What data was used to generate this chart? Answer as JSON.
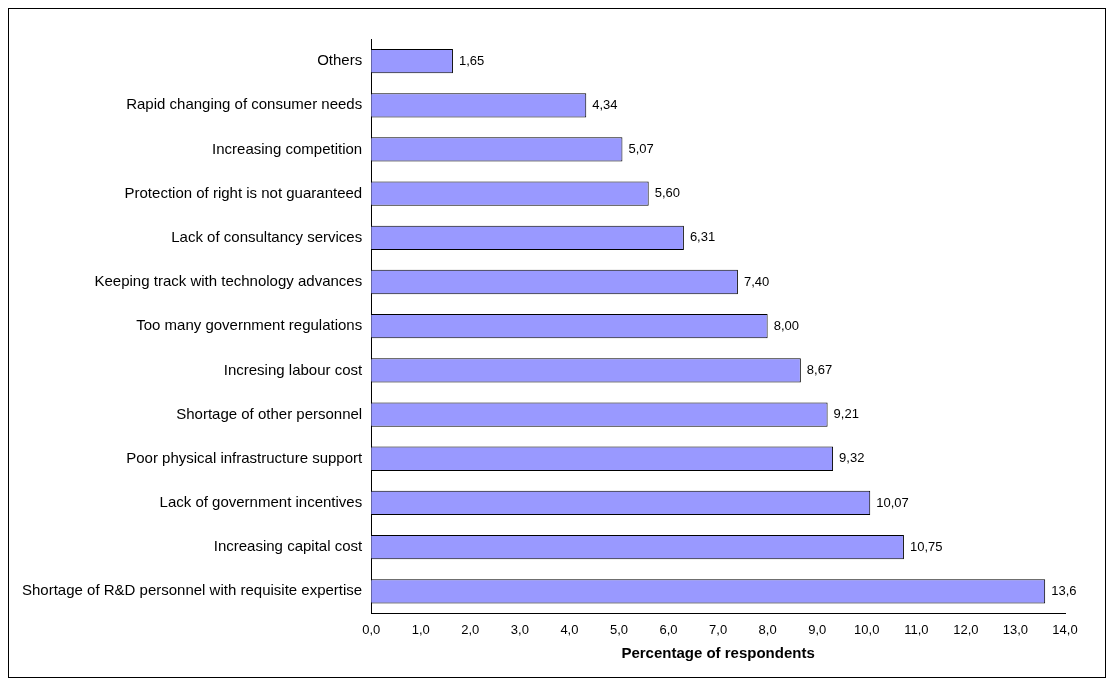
{
  "chart_data": {
    "type": "bar",
    "orientation": "horizontal",
    "xlabel": "Percentage of respondents",
    "categories": [
      "Others",
      "Rapid changing of consumer needs",
      "Increasing competition",
      "Protection of right is not guaranteed",
      "Lack of consultancy services",
      "Keeping track with technology advances",
      "Too many government regulations",
      "Incresing labour cost",
      "Shortage of other personnel",
      "Poor physical infrastructure support",
      "Lack of government incentives",
      "Increasing capital cost",
      "Shortage of R&D personnel with requisite expertise"
    ],
    "values": [
      1.65,
      4.34,
      5.07,
      5.6,
      6.31,
      7.4,
      8.0,
      8.67,
      9.21,
      9.32,
      10.07,
      10.75,
      13.6
    ],
    "value_labels": [
      "1,65",
      "4,34",
      "5,07",
      "5,60",
      "6,31",
      "7,40",
      "8,00",
      "8,67",
      "9,21",
      "9,32",
      "10,07",
      "10,75",
      "13,6"
    ],
    "color": "#9999ff",
    "xlim": [
      0,
      14
    ],
    "xticks": [
      {
        "value": 0,
        "label": "0,0"
      },
      {
        "value": 1,
        "label": "1,0"
      },
      {
        "value": 2,
        "label": "2,0"
      },
      {
        "value": 3,
        "label": "3,0"
      },
      {
        "value": 4,
        "label": "4,0"
      },
      {
        "value": 5,
        "label": "5,0"
      },
      {
        "value": 6,
        "label": "6,0"
      },
      {
        "value": 7,
        "label": "7,0"
      },
      {
        "value": 8,
        "label": "8,0"
      },
      {
        "value": 9,
        "label": "9,0"
      },
      {
        "value": 10,
        "label": "10,0"
      },
      {
        "value": 11,
        "label": "11,0"
      },
      {
        "value": 12,
        "label": "12,0"
      },
      {
        "value": 13,
        "label": "13,0"
      },
      {
        "value": 14,
        "label": "14,0"
      }
    ]
  }
}
